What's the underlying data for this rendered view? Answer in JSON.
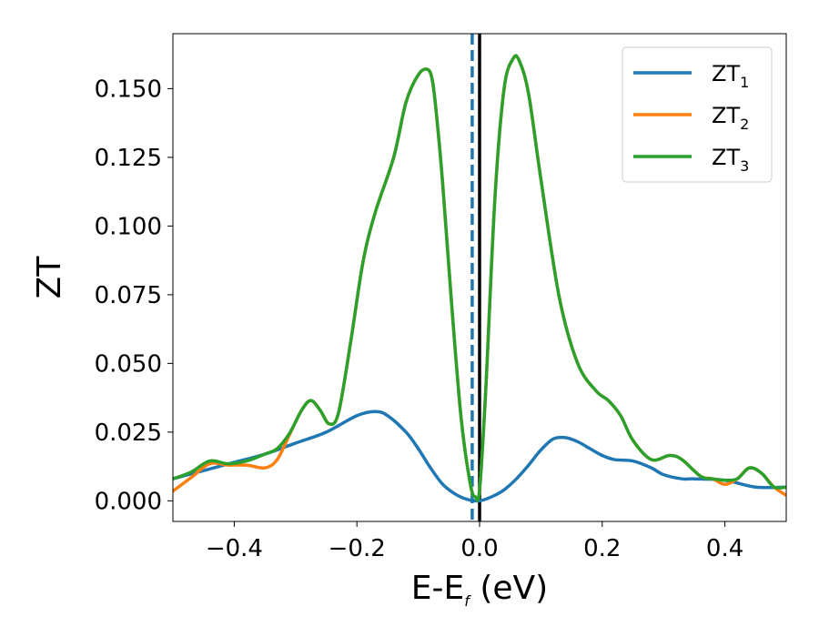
{
  "chart_data": {
    "type": "line",
    "xlabel": "E-E",
    "xlabel_sub": "f",
    "xlabel_unit": " (eV)",
    "ylabel": "ZT",
    "xlim": [
      -0.5,
      0.5
    ],
    "ylim": [
      -0.0075,
      0.17
    ],
    "xticks": [
      -0.4,
      -0.2,
      0.0,
      0.2,
      0.4
    ],
    "xtick_labels": [
      "−0.4",
      "−0.2",
      "0.0",
      "0.2",
      "0.4"
    ],
    "yticks": [
      0.0,
      0.025,
      0.05,
      0.075,
      0.1,
      0.125,
      0.15
    ],
    "ytick_labels": [
      "0.000",
      "0.025",
      "0.050",
      "0.075",
      "0.100",
      "0.125",
      "0.150"
    ],
    "grid": false,
    "legend_position": "top-right",
    "vlines": [
      {
        "x": -0.012,
        "style": "dashed",
        "color": "#1f77b4"
      },
      {
        "x": 0.0,
        "style": "solid",
        "color": "#000000"
      }
    ],
    "series": [
      {
        "name": "ZT",
        "name_sub": "1",
        "color": "#1f77b4",
        "x": [
          -0.5,
          -0.45,
          -0.4,
          -0.35,
          -0.3,
          -0.25,
          -0.2,
          -0.17,
          -0.15,
          -0.12,
          -0.1,
          -0.08,
          -0.06,
          -0.04,
          -0.02,
          0.0,
          0.02,
          0.04,
          0.06,
          0.08,
          0.1,
          0.12,
          0.14,
          0.16,
          0.18,
          0.2,
          0.22,
          0.25,
          0.28,
          0.3,
          0.33,
          0.35,
          0.4,
          0.45,
          0.5
        ],
        "y": [
          0.008,
          0.011,
          0.014,
          0.017,
          0.021,
          0.025,
          0.031,
          0.0325,
          0.031,
          0.025,
          0.019,
          0.012,
          0.006,
          0.0025,
          0.0005,
          0.0,
          0.0015,
          0.004,
          0.008,
          0.013,
          0.0185,
          0.0225,
          0.023,
          0.0215,
          0.019,
          0.0165,
          0.015,
          0.0145,
          0.012,
          0.0095,
          0.008,
          0.008,
          0.0075,
          0.005,
          0.005
        ]
      },
      {
        "name": "ZT",
        "name_sub": "2",
        "color": "#ff7f0e",
        "x": [
          -0.5,
          -0.47,
          -0.44,
          -0.41,
          -0.38,
          -0.35,
          -0.33,
          -0.31,
          -0.29,
          -0.275,
          -0.26,
          -0.245,
          -0.23,
          -0.21,
          -0.19,
          -0.17,
          -0.14,
          -0.12,
          -0.1,
          -0.085,
          -0.077,
          -0.07,
          -0.06,
          -0.045,
          -0.03,
          -0.015,
          -0.007,
          0.0,
          0.01,
          0.025,
          0.04,
          0.055,
          0.065,
          0.08,
          0.1,
          0.13,
          0.16,
          0.19,
          0.21,
          0.23,
          0.25,
          0.28,
          0.31,
          0.33,
          0.36,
          0.38,
          0.4,
          0.42,
          0.44,
          0.46,
          0.48,
          0.5
        ],
        "y": [
          0.0035,
          0.0085,
          0.0135,
          0.013,
          0.013,
          0.012,
          0.015,
          0.024,
          0.033,
          0.0365,
          0.033,
          0.028,
          0.032,
          0.058,
          0.087,
          0.105,
          0.125,
          0.145,
          0.155,
          0.157,
          0.153,
          0.14,
          0.115,
          0.07,
          0.03,
          0.006,
          0.0015,
          0.004,
          0.04,
          0.11,
          0.15,
          0.161,
          0.16,
          0.148,
          0.117,
          0.074,
          0.05,
          0.04,
          0.0365,
          0.031,
          0.022,
          0.015,
          0.0165,
          0.015,
          0.009,
          0.008,
          0.006,
          0.008,
          0.012,
          0.01,
          0.005,
          0.002
        ]
      },
      {
        "name": "ZT",
        "name_sub": "3",
        "color": "#2ca02c",
        "x": [
          -0.5,
          -0.47,
          -0.44,
          -0.41,
          -0.38,
          -0.35,
          -0.33,
          -0.31,
          -0.29,
          -0.275,
          -0.26,
          -0.245,
          -0.23,
          -0.21,
          -0.19,
          -0.17,
          -0.14,
          -0.12,
          -0.1,
          -0.085,
          -0.077,
          -0.07,
          -0.06,
          -0.045,
          -0.03,
          -0.015,
          -0.007,
          0.0,
          0.01,
          0.025,
          0.04,
          0.055,
          0.065,
          0.08,
          0.1,
          0.13,
          0.16,
          0.19,
          0.21,
          0.23,
          0.25,
          0.28,
          0.31,
          0.33,
          0.36,
          0.38,
          0.4,
          0.42,
          0.44,
          0.46,
          0.48,
          0.5
        ],
        "y": [
          0.008,
          0.0105,
          0.0145,
          0.0135,
          0.0145,
          0.017,
          0.019,
          0.0245,
          0.033,
          0.0365,
          0.033,
          0.028,
          0.032,
          0.058,
          0.087,
          0.105,
          0.125,
          0.145,
          0.155,
          0.157,
          0.153,
          0.14,
          0.115,
          0.07,
          0.03,
          0.006,
          0.0015,
          0.004,
          0.04,
          0.11,
          0.15,
          0.161,
          0.16,
          0.148,
          0.117,
          0.074,
          0.05,
          0.04,
          0.0365,
          0.031,
          0.022,
          0.015,
          0.0165,
          0.015,
          0.009,
          0.008,
          0.0075,
          0.008,
          0.012,
          0.01,
          0.005,
          0.005
        ]
      }
    ]
  }
}
